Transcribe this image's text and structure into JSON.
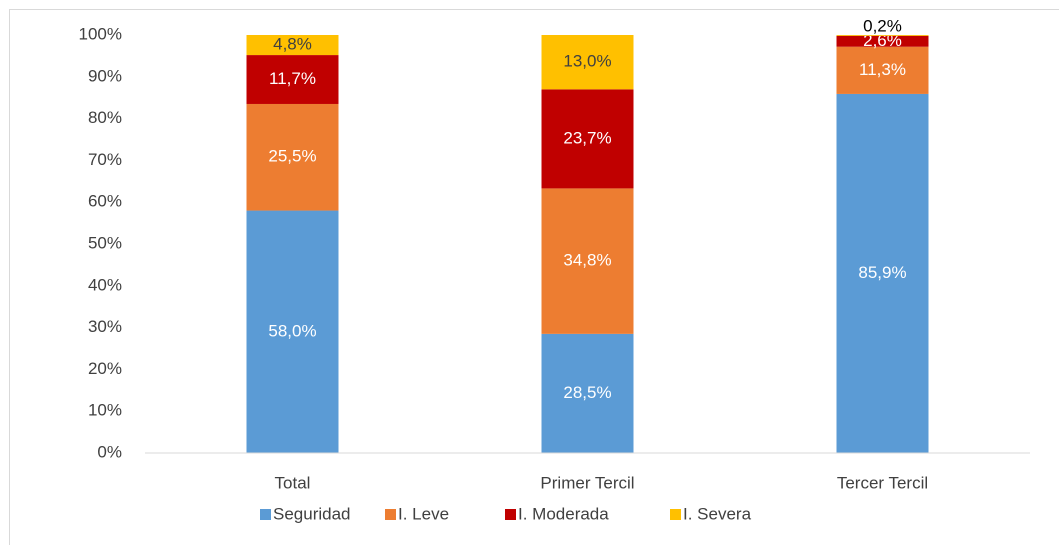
{
  "chart_data": {
    "type": "stacked_bar",
    "categories": [
      "Total",
      "Primer Tercil",
      "Tercer Tercil"
    ],
    "series": [
      {
        "name": "Seguridad",
        "color": "#5b9bd5",
        "values": [
          58.0,
          28.5,
          85.9
        ],
        "value_labels": [
          "58,0%",
          "28,5%",
          "85,9%"
        ]
      },
      {
        "name": "I. Leve",
        "color": "#ed7d31",
        "values": [
          25.5,
          34.8,
          11.3
        ],
        "value_labels": [
          "25,5%",
          "34,8%",
          "11,3%"
        ]
      },
      {
        "name": "I. Moderada",
        "color": "#c00000",
        "values": [
          11.7,
          23.7,
          2.6
        ],
        "value_labels": [
          "11,7%",
          "23,7%",
          "2,6%"
        ]
      },
      {
        "name": "I. Severa",
        "color": "#ffc000",
        "values": [
          4.8,
          13.0,
          0.2
        ],
        "value_labels": [
          "4,8%",
          "13,0%",
          "0,2%"
        ]
      }
    ],
    "ylim": [
      0,
      100
    ],
    "yticks": [
      {
        "value": 0,
        "label": "0%"
      },
      {
        "value": 10,
        "label": "10%"
      },
      {
        "value": 20,
        "label": "20%"
      },
      {
        "value": 30,
        "label": "30%"
      },
      {
        "value": 40,
        "label": "40%"
      },
      {
        "value": 50,
        "label": "50%"
      },
      {
        "value": 60,
        "label": "60%"
      },
      {
        "value": 70,
        "label": "70%"
      },
      {
        "value": 80,
        "label": "80%"
      },
      {
        "value": 90,
        "label": "90%"
      },
      {
        "value": 100,
        "label": "100%"
      }
    ],
    "grid": false,
    "legend": "bottom"
  }
}
